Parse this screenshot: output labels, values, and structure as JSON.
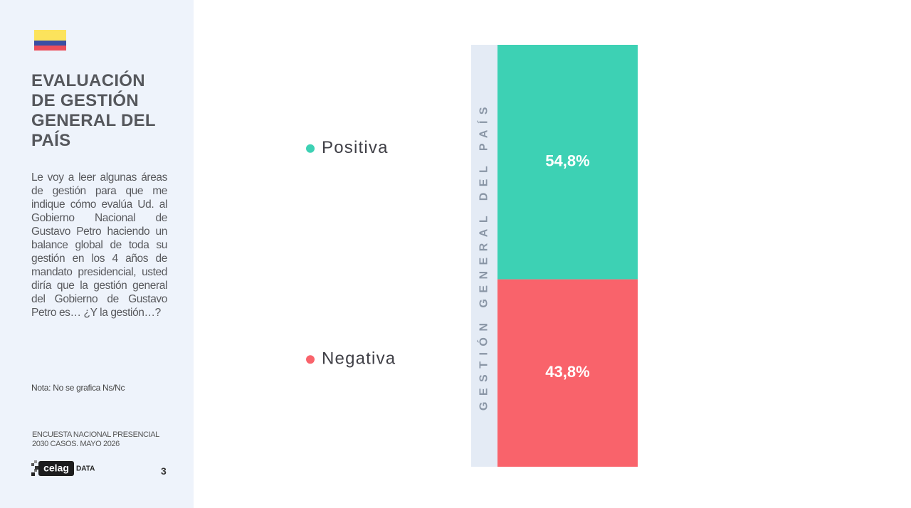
{
  "header": {
    "title": "EVALUACIÓN DE GESTIÓN GENERAL DEL PAÍS",
    "question": "Le voy a leer algunas áreas de gestión para que me indique cómo evalúa Ud. al Gobierno Nacional de Gustavo Petro haciendo un balance global de toda su gestión en los 4 años de mandato presidencial, usted diría que la gestión general del Gobierno de Gustavo Petro es… ¿Y la gestión…?",
    "note": "Nota: No se grafica Ns/Nc",
    "source": [
      "ENCUESTA NACIONAL PRESENCIAL",
      "2030 CASOS. MAYO 2026"
    ],
    "logo": [
      "celag",
      "DATA"
    ],
    "page": "3"
  },
  "chart_data": {
    "type": "stacked-bar",
    "categories": [
      "GESTIÓN GENERAL DEL PAÍS"
    ],
    "series": [
      {
        "name": "Positiva",
        "color": "#3dd1b4",
        "values": [
          54.8
        ],
        "value_labels": [
          "54,8%"
        ]
      },
      {
        "name": "Negativa",
        "color": "#f9636b",
        "values": [
          43.8
        ],
        "value_labels": [
          "43,8%"
        ]
      }
    ]
  }
}
